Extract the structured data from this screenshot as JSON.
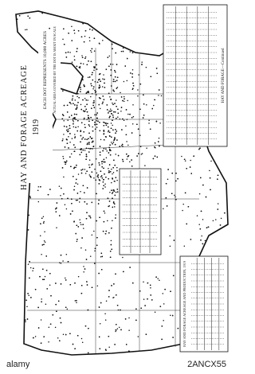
{
  "map": {
    "title": "HAY AND FORAGE ACREAGE",
    "year": "1919",
    "legend": "EACH DOT REPRESENTS 10,000 ACRES",
    "legend_note": "ACTUAL AREA COVERED BY THE DOT IS ABOUT IN SCALE",
    "table_top_title": "HAY AND FORAGE—Continued",
    "table_bottom_title": "HAY AND FORAGE ACREAGE AND PRODUCTION, 1919"
  },
  "footer": {
    "brand": "alamy",
    "code": "2ANCX55"
  }
}
